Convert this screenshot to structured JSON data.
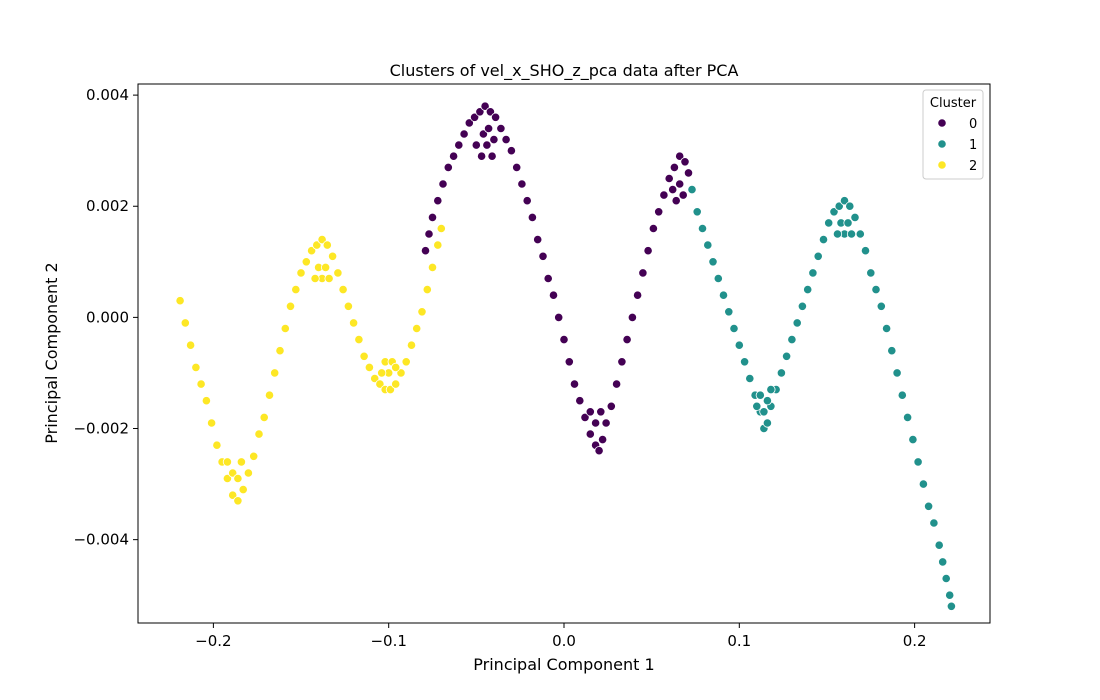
{
  "chart_data": {
    "type": "scatter",
    "title": "Clusters of vel_x_SHO_z_pca data after PCA",
    "xlabel": "Principal Component 1",
    "ylabel": "Principal Component 2",
    "xlim": [
      -0.243,
      0.243
    ],
    "ylim": [
      -0.0055,
      0.0042
    ],
    "xticks": [
      -0.2,
      -0.1,
      0.0,
      0.1,
      0.2
    ],
    "xtick_labels": [
      "−0.2",
      "−0.1",
      "0.0",
      "0.1",
      "0.2"
    ],
    "yticks": [
      -0.004,
      -0.002,
      0.0,
      0.002,
      0.004
    ],
    "ytick_labels": [
      "−0.004",
      "−0.002",
      "0.000",
      "0.002",
      "0.004"
    ],
    "grid": false,
    "legend": {
      "title": "Cluster",
      "placement": "top-right"
    },
    "series": [
      {
        "name": "0",
        "color": "#440154",
        "points": [
          [
            -0.079,
            0.0012
          ],
          [
            -0.077,
            0.0015
          ],
          [
            -0.075,
            0.0018
          ],
          [
            -0.072,
            0.0021
          ],
          [
            -0.069,
            0.0024
          ],
          [
            -0.066,
            0.0027
          ],
          [
            -0.063,
            0.0029
          ],
          [
            -0.06,
            0.0031
          ],
          [
            -0.057,
            0.0033
          ],
          [
            -0.054,
            0.0035
          ],
          [
            -0.051,
            0.0036
          ],
          [
            -0.048,
            0.0037
          ],
          [
            -0.045,
            0.0038
          ],
          [
            -0.042,
            0.0037
          ],
          [
            -0.039,
            0.0036
          ],
          [
            -0.036,
            0.0034
          ],
          [
            -0.033,
            0.0032
          ],
          [
            -0.03,
            0.003
          ],
          [
            -0.027,
            0.0027
          ],
          [
            -0.024,
            0.0024
          ],
          [
            -0.021,
            0.0021
          ],
          [
            -0.018,
            0.0018
          ],
          [
            -0.015,
            0.0014
          ],
          [
            -0.012,
            0.0011
          ],
          [
            -0.009,
            0.0007
          ],
          [
            -0.006,
            0.0004
          ],
          [
            -0.003,
            0.0
          ],
          [
            0.0,
            -0.0004
          ],
          [
            0.003,
            -0.0008
          ],
          [
            0.006,
            -0.0012
          ],
          [
            0.009,
            -0.0015
          ],
          [
            0.012,
            -0.0018
          ],
          [
            0.015,
            -0.0021
          ],
          [
            0.018,
            -0.0023
          ],
          [
            0.02,
            -0.0024
          ],
          [
            0.022,
            -0.0022
          ],
          [
            0.024,
            -0.0019
          ],
          [
            0.027,
            -0.0016
          ],
          [
            0.03,
            -0.0012
          ],
          [
            0.033,
            -0.0008
          ],
          [
            0.036,
            -0.0004
          ],
          [
            0.039,
            0.0
          ],
          [
            0.042,
            0.0004
          ],
          [
            0.045,
            0.0008
          ],
          [
            0.048,
            0.0012
          ],
          [
            0.051,
            0.0016
          ],
          [
            0.054,
            0.0019
          ],
          [
            0.057,
            0.0022
          ],
          [
            0.06,
            0.0025
          ],
          [
            0.063,
            0.0027
          ],
          [
            0.066,
            0.0029
          ],
          [
            0.069,
            0.0028
          ],
          [
            0.071,
            0.0026
          ],
          [
            0.073,
            0.0023
          ],
          [
            -0.05,
            0.0031
          ],
          [
            -0.046,
            0.0033
          ],
          [
            -0.043,
            0.0034
          ],
          [
            -0.04,
            0.0032
          ],
          [
            -0.047,
            0.0029
          ],
          [
            -0.041,
            0.0029
          ],
          [
            -0.044,
            0.0031
          ],
          [
            0.018,
            -0.0019
          ],
          [
            0.015,
            -0.0017
          ],
          [
            0.021,
            -0.0017
          ],
          [
            0.062,
            0.0023
          ],
          [
            0.066,
            0.0024
          ],
          [
            0.064,
            0.0021
          ],
          [
            0.068,
            0.0022
          ]
        ]
      },
      {
        "name": "1",
        "color": "#21918c",
        "points": [
          [
            0.073,
            0.0023
          ],
          [
            0.076,
            0.0019
          ],
          [
            0.079,
            0.0016
          ],
          [
            0.082,
            0.0013
          ],
          [
            0.085,
            0.001
          ],
          [
            0.088,
            0.0007
          ],
          [
            0.091,
            0.0004
          ],
          [
            0.094,
            0.0001
          ],
          [
            0.097,
            -0.0002
          ],
          [
            0.1,
            -0.0005
          ],
          [
            0.103,
            -0.0008
          ],
          [
            0.106,
            -0.0011
          ],
          [
            0.109,
            -0.0014
          ],
          [
            0.112,
            -0.0017
          ],
          [
            0.114,
            -0.002
          ],
          [
            0.116,
            -0.0019
          ],
          [
            0.118,
            -0.0016
          ],
          [
            0.121,
            -0.0013
          ],
          [
            0.124,
            -0.001
          ],
          [
            0.127,
            -0.0007
          ],
          [
            0.13,
            -0.0004
          ],
          [
            0.133,
            -0.0001
          ],
          [
            0.136,
            0.0002
          ],
          [
            0.139,
            0.0005
          ],
          [
            0.142,
            0.0008
          ],
          [
            0.145,
            0.0011
          ],
          [
            0.148,
            0.0014
          ],
          [
            0.151,
            0.0017
          ],
          [
            0.154,
            0.0019
          ],
          [
            0.157,
            0.002
          ],
          [
            0.16,
            0.0021
          ],
          [
            0.163,
            0.002
          ],
          [
            0.166,
            0.0018
          ],
          [
            0.169,
            0.0015
          ],
          [
            0.172,
            0.0012
          ],
          [
            0.175,
            0.0008
          ],
          [
            0.178,
            0.0005
          ],
          [
            0.181,
            0.0002
          ],
          [
            0.184,
            -0.0002
          ],
          [
            0.187,
            -0.0006
          ],
          [
            0.19,
            -0.001
          ],
          [
            0.193,
            -0.0014
          ],
          [
            0.196,
            -0.0018
          ],
          [
            0.199,
            -0.0022
          ],
          [
            0.202,
            -0.0026
          ],
          [
            0.205,
            -0.003
          ],
          [
            0.208,
            -0.0034
          ],
          [
            0.211,
            -0.0037
          ],
          [
            0.214,
            -0.0041
          ],
          [
            0.216,
            -0.0044
          ],
          [
            0.218,
            -0.0047
          ],
          [
            0.22,
            -0.005
          ],
          [
            0.221,
            -0.0052
          ],
          [
            0.112,
            -0.0014
          ],
          [
            0.116,
            -0.0015
          ],
          [
            0.114,
            -0.0017
          ],
          [
            0.11,
            -0.0016
          ],
          [
            0.118,
            -0.0013
          ],
          [
            0.158,
            0.0017
          ],
          [
            0.162,
            0.0017
          ],
          [
            0.16,
            0.0015
          ],
          [
            0.156,
            0.0015
          ],
          [
            0.164,
            0.0015
          ]
        ]
      },
      {
        "name": "2",
        "color": "#fde725",
        "points": [
          [
            -0.219,
            0.0003
          ],
          [
            -0.216,
            -0.0001
          ],
          [
            -0.213,
            -0.0005
          ],
          [
            -0.21,
            -0.0009
          ],
          [
            -0.207,
            -0.0012
          ],
          [
            -0.204,
            -0.0015
          ],
          [
            -0.201,
            -0.0019
          ],
          [
            -0.198,
            -0.0023
          ],
          [
            -0.195,
            -0.0026
          ],
          [
            -0.192,
            -0.0029
          ],
          [
            -0.189,
            -0.0032
          ],
          [
            -0.186,
            -0.0033
          ],
          [
            -0.183,
            -0.0031
          ],
          [
            -0.18,
            -0.0028
          ],
          [
            -0.177,
            -0.0025
          ],
          [
            -0.174,
            -0.0021
          ],
          [
            -0.171,
            -0.0018
          ],
          [
            -0.168,
            -0.0014
          ],
          [
            -0.165,
            -0.001
          ],
          [
            -0.162,
            -0.0006
          ],
          [
            -0.159,
            -0.0002
          ],
          [
            -0.156,
            0.0002
          ],
          [
            -0.153,
            0.0005
          ],
          [
            -0.15,
            0.0008
          ],
          [
            -0.147,
            0.001
          ],
          [
            -0.144,
            0.0012
          ],
          [
            -0.141,
            0.0013
          ],
          [
            -0.138,
            0.0014
          ],
          [
            -0.135,
            0.0013
          ],
          [
            -0.132,
            0.0011
          ],
          [
            -0.129,
            0.0008
          ],
          [
            -0.126,
            0.0005
          ],
          [
            -0.123,
            0.0002
          ],
          [
            -0.12,
            -0.0001
          ],
          [
            -0.117,
            -0.0004
          ],
          [
            -0.114,
            -0.0007
          ],
          [
            -0.111,
            -0.0009
          ],
          [
            -0.108,
            -0.0011
          ],
          [
            -0.105,
            -0.0012
          ],
          [
            -0.102,
            -0.0013
          ],
          [
            -0.099,
            -0.0013
          ],
          [
            -0.096,
            -0.0012
          ],
          [
            -0.093,
            -0.001
          ],
          [
            -0.09,
            -0.0008
          ],
          [
            -0.087,
            -0.0005
          ],
          [
            -0.084,
            -0.0002
          ],
          [
            -0.081,
            0.0001
          ],
          [
            -0.078,
            0.0005
          ],
          [
            -0.075,
            0.0009
          ],
          [
            -0.072,
            0.0013
          ],
          [
            -0.07,
            0.0016
          ],
          [
            -0.189,
            -0.0028
          ],
          [
            -0.186,
            -0.0029
          ],
          [
            -0.192,
            -0.0026
          ],
          [
            -0.184,
            -0.0026
          ],
          [
            -0.14,
            0.0009
          ],
          [
            -0.136,
            0.0009
          ],
          [
            -0.138,
            0.0007
          ],
          [
            -0.134,
            0.0007
          ],
          [
            -0.142,
            0.0007
          ],
          [
            -0.102,
            -0.0008
          ],
          [
            -0.098,
            -0.0008
          ],
          [
            -0.1,
            -0.001
          ],
          [
            -0.096,
            -0.0009
          ],
          [
            -0.104,
            -0.001
          ]
        ]
      }
    ]
  }
}
